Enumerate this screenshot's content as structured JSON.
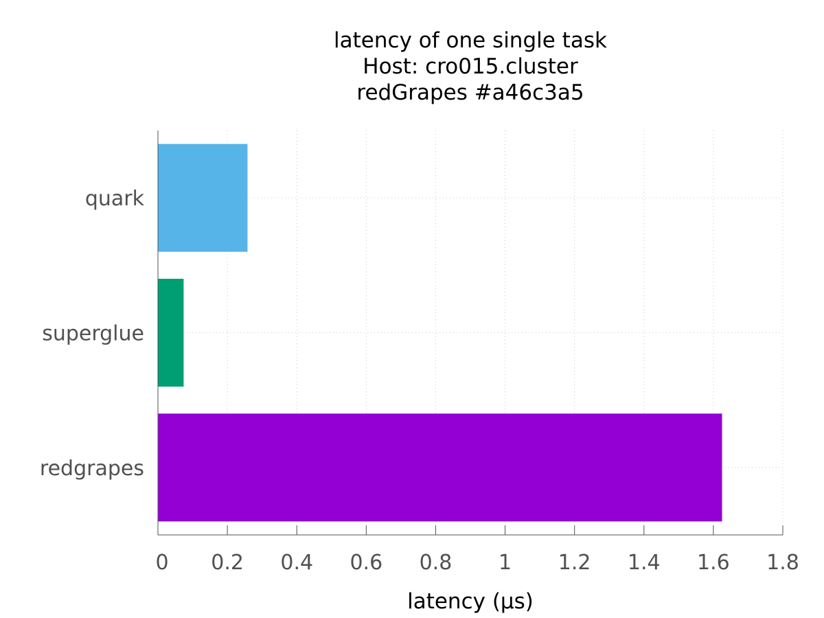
{
  "chart_data": {
    "type": "bar",
    "orientation": "horizontal",
    "title": [
      "latency of one single task",
      "Host: cro015.cluster",
      "redGrapes #a46c3a5"
    ],
    "categories": [
      "quark",
      "superglue",
      "redgrapes"
    ],
    "values": [
      0.258,
      0.074,
      1.625
    ],
    "colors": [
      "#56b4e9",
      "#009e73",
      "#9400d3"
    ],
    "xlabel": "latency (µs)",
    "ylabel": "",
    "xlim": [
      0,
      1.8
    ],
    "xticks": [
      0,
      0.2,
      0.4,
      0.6,
      0.8,
      1,
      1.2,
      1.4,
      1.6,
      1.8
    ],
    "xtick_labels": [
      "0",
      "0.2",
      "0.4",
      "0.6",
      "0.8",
      "1",
      "1.2",
      "1.4",
      "1.6",
      "1.8"
    ],
    "grid": true,
    "legend": "none"
  }
}
